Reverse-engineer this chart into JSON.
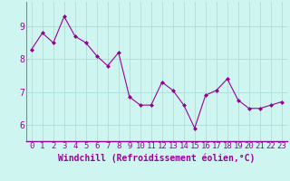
{
  "x": [
    0,
    1,
    2,
    3,
    4,
    5,
    6,
    7,
    8,
    9,
    10,
    11,
    12,
    13,
    14,
    15,
    16,
    17,
    18,
    19,
    20,
    21,
    22,
    23
  ],
  "y": [
    8.3,
    8.8,
    8.5,
    9.3,
    8.7,
    8.5,
    8.1,
    7.8,
    8.2,
    6.85,
    6.6,
    6.6,
    7.3,
    7.05,
    6.6,
    5.9,
    6.9,
    7.05,
    7.4,
    6.75,
    6.5,
    6.5,
    6.6,
    6.7
  ],
  "line_color": "#990099",
  "marker": "D",
  "marker_size": 2,
  "bg_color": "#cff5f0",
  "grid_color": "#aadddd",
  "xlabel": "Windchill (Refroidissement éolien,°C)",
  "xlabel_color": "#990099",
  "tick_color": "#990099",
  "axis_color": "#888888",
  "ylim": [
    5.5,
    9.75
  ],
  "yticks": [
    6,
    7,
    8,
    9
  ],
  "xticks": [
    0,
    1,
    2,
    3,
    4,
    5,
    6,
    7,
    8,
    9,
    10,
    11,
    12,
    13,
    14,
    15,
    16,
    17,
    18,
    19,
    20,
    21,
    22,
    23
  ],
  "xlabel_fontsize": 7,
  "tick_fontsize": 6.5
}
